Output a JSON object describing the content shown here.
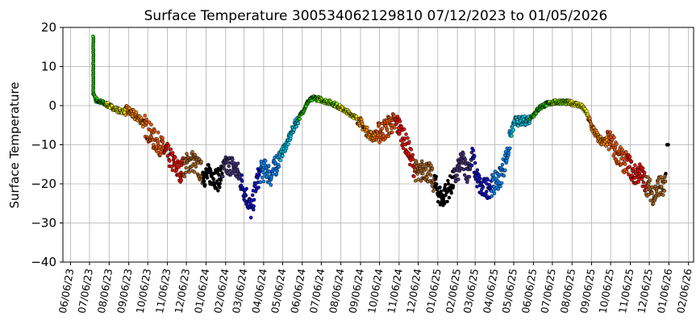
{
  "chart_data": {
    "type": "scatter",
    "title": "Surface Temperature 300534062129810  07/12/2023 to 01/05/2026",
    "xlabel": "",
    "ylabel": "Surface Temperature",
    "ylim": [
      -40,
      20
    ],
    "yticks": [
      "20",
      "10",
      "0",
      "−10",
      "−20",
      "−30",
      "−40"
    ],
    "ytick_values": [
      20,
      10,
      0,
      -10,
      -20,
      -30,
      -40
    ],
    "xlim": [
      "2023-05-25",
      "2026-02-14"
    ],
    "xticks": [
      "06/06/23",
      "07/06/23",
      "08/06/23",
      "09/06/23",
      "10/06/23",
      "11/06/23",
      "12/06/23",
      "01/06/24",
      "02/06/24",
      "03/06/24",
      "04/06/24",
      "05/06/24",
      "06/06/24",
      "07/06/24",
      "08/06/24",
      "09/06/24",
      "10/06/24",
      "11/06/24",
      "12/06/24",
      "01/06/25",
      "02/06/25",
      "03/06/25",
      "04/06/25",
      "05/06/25",
      "06/06/25",
      "07/06/25",
      "08/06/25",
      "09/06/25",
      "10/06/25",
      "11/06/25",
      "12/06/25",
      "01/06/26",
      "02/06/26"
    ],
    "grid": true,
    "legend": "none",
    "marker_colors_by_month": {
      "2023-07": "#22dd00",
      "2023-08": "#ffff00",
      "2023-09": "#ff8800",
      "2023-10": "#ee5500",
      "2023-11": "#ee1100",
      "2023-12": "#aa6622",
      "2024-01": "#000000",
      "2024-02": "#443377",
      "2024-03": "#1111cc",
      "2024-04": "#0088ff",
      "2024-05": "#00ccee",
      "2024-06": "#22dd00",
      "2024-07": "#88ff00",
      "2024-08": "#ffff00",
      "2024-09": "#ff8800",
      "2024-10": "#ee5500",
      "2024-11": "#ee1100",
      "2024-12": "#aa6622",
      "2025-01": "#000000",
      "2025-02": "#443377",
      "2025-03": "#1111cc",
      "2025-04": "#0088ff",
      "2025-05": "#00ccee",
      "2025-06": "#22dd00",
      "2025-07": "#88ff00",
      "2025-08": "#ffff00",
      "2025-09": "#ff8800",
      "2025-10": "#ee5500",
      "2025-11": "#ee1100",
      "2025-12": "#aa6622",
      "2026-01": "#000000"
    },
    "series": [
      {
        "trace": [
          [
            "2023-07-12",
            17.5
          ],
          [
            "2023-07-12",
            14.0
          ],
          [
            "2023-07-12",
            10.0
          ],
          [
            "2023-07-12",
            6.0
          ],
          [
            "2023-07-13",
            3.0
          ],
          [
            "2023-07-16",
            1.5
          ],
          [
            "2023-07-22",
            1.0
          ],
          [
            "2023-07-30",
            0.5
          ],
          [
            "2023-08-06",
            0.0
          ],
          [
            "2023-08-15",
            -0.8
          ],
          [
            "2023-08-25",
            -1.5
          ],
          [
            "2023-09-04",
            -1.2
          ],
          [
            "2023-09-15",
            -2.5
          ],
          [
            "2023-09-25",
            -3.5
          ],
          [
            "2023-10-05",
            -6.0
          ],
          [
            "2023-10-15",
            -8.5
          ],
          [
            "2023-10-25",
            -10.0
          ],
          [
            "2023-11-04",
            -12.0
          ],
          [
            "2023-11-15",
            -14.5
          ],
          [
            "2023-11-25",
            -17.0
          ],
          [
            "2023-12-05",
            -15.0
          ],
          [
            "2023-12-15",
            -14.0
          ],
          [
            "2023-12-25",
            -16.0
          ],
          [
            "2024-01-04",
            -18.0
          ],
          [
            "2024-01-15",
            -17.5
          ],
          [
            "2024-01-25",
            -19.0
          ],
          [
            "2024-02-04",
            -16.0
          ],
          [
            "2024-02-14",
            -15.0
          ],
          [
            "2024-02-25",
            -17.0
          ],
          [
            "2024-03-05",
            -21.0
          ],
          [
            "2024-03-12",
            -24.0
          ],
          [
            "2024-03-18",
            -27.0
          ],
          [
            "2024-03-25",
            -20.0
          ],
          [
            "2024-04-01",
            -17.0
          ],
          [
            "2024-04-10",
            -16.5
          ],
          [
            "2024-04-18",
            -18.0
          ],
          [
            "2024-04-26",
            -15.0
          ],
          [
            "2024-05-05",
            -12.0
          ],
          [
            "2024-05-15",
            -9.0
          ],
          [
            "2024-05-25",
            -5.0
          ],
          [
            "2024-06-05",
            -2.0
          ],
          [
            "2024-06-15",
            1.0
          ],
          [
            "2024-06-25",
            2.0
          ],
          [
            "2024-07-06",
            1.5
          ],
          [
            "2024-07-15",
            1.0
          ],
          [
            "2024-07-25",
            0.5
          ],
          [
            "2024-08-05",
            -0.5
          ],
          [
            "2024-08-15",
            -1.5
          ],
          [
            "2024-08-25",
            -2.5
          ],
          [
            "2024-09-05",
            -4.0
          ],
          [
            "2024-09-15",
            -6.5
          ],
          [
            "2024-09-25",
            -8.0
          ],
          [
            "2024-10-05",
            -7.0
          ],
          [
            "2024-10-15",
            -6.0
          ],
          [
            "2024-10-25",
            -4.5
          ],
          [
            "2024-11-05",
            -5.0
          ],
          [
            "2024-11-12",
            -8.0
          ],
          [
            "2024-11-20",
            -11.0
          ],
          [
            "2024-11-28",
            -15.0
          ],
          [
            "2024-12-06",
            -18.0
          ],
          [
            "2024-12-15",
            -16.0
          ],
          [
            "2024-12-25",
            -17.5
          ],
          [
            "2025-01-04",
            -21.0
          ],
          [
            "2025-01-12",
            -24.0
          ],
          [
            "2025-01-20",
            -22.0
          ],
          [
            "2025-01-28",
            -20.0
          ],
          [
            "2025-02-06",
            -17.0
          ],
          [
            "2025-02-14",
            -14.0
          ],
          [
            "2025-02-22",
            -17.0
          ],
          [
            "2025-03-02",
            -13.0
          ],
          [
            "2025-03-08",
            -18.0
          ],
          [
            "2025-03-16",
            -21.5
          ],
          [
            "2025-03-26",
            -21.0
          ],
          [
            "2025-04-05",
            -20.0
          ],
          [
            "2025-04-15",
            -18.0
          ],
          [
            "2025-04-25",
            -13.0
          ],
          [
            "2025-05-02",
            -7.0
          ],
          [
            "2025-05-08",
            -4.0
          ],
          [
            "2025-05-20",
            -4.0
          ],
          [
            "2025-05-30",
            -3.5
          ],
          [
            "2025-06-08",
            -2.0
          ],
          [
            "2025-06-16",
            -0.5
          ],
          [
            "2025-06-25",
            0.3
          ],
          [
            "2025-07-06",
            0.8
          ],
          [
            "2025-07-18",
            1.0
          ],
          [
            "2025-07-30",
            0.8
          ],
          [
            "2025-08-10",
            0.5
          ],
          [
            "2025-08-20",
            0.0
          ],
          [
            "2025-08-28",
            -1.5
          ],
          [
            "2025-09-05",
            -5.0
          ],
          [
            "2025-09-15",
            -8.0
          ],
          [
            "2025-09-25",
            -9.5
          ],
          [
            "2025-10-06",
            -9.0
          ],
          [
            "2025-10-14",
            -11.5
          ],
          [
            "2025-10-24",
            -14.0
          ],
          [
            "2025-11-04",
            -15.0
          ],
          [
            "2025-11-12",
            -18.0
          ],
          [
            "2025-11-20",
            -17.0
          ],
          [
            "2025-11-28",
            -19.0
          ],
          [
            "2025-12-05",
            -21.0
          ],
          [
            "2025-12-14",
            -23.0
          ],
          [
            "2025-12-22",
            -20.0
          ],
          [
            "2025-12-30",
            -22.0
          ],
          [
            "2026-01-05",
            -10.0
          ]
        ]
      }
    ]
  }
}
